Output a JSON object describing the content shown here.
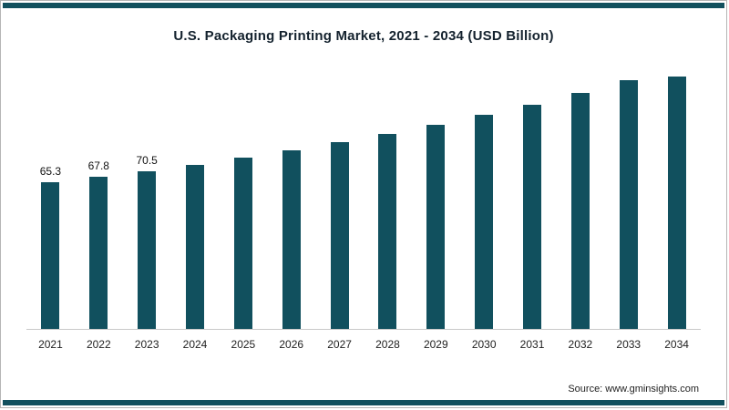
{
  "chart_data": {
    "type": "bar",
    "title": "U.S. Packaging Printing Market, 2021 - 2034 (USD Billion)",
    "categories": [
      "2021",
      "2022",
      "2023",
      "2024",
      "2025",
      "2026",
      "2027",
      "2028",
      "2029",
      "2030",
      "2031",
      "2032",
      "2033",
      "2034"
    ],
    "values": [
      65.3,
      67.8,
      70.5,
      73.4,
      76.5,
      79.8,
      83.2,
      87.0,
      91.2,
      95.5,
      100.2,
      105.5,
      111.2,
      117.0
    ],
    "data_labels": [
      "65.3",
      "67.8",
      "70.5",
      "",
      "",
      "",
      "",
      "",
      "",
      "",
      "",
      "",
      "",
      ""
    ],
    "xlabel": "",
    "ylabel": "",
    "ylim": [
      0,
      120
    ],
    "grid": false,
    "legend": "none",
    "bar_color": "#11505e",
    "source": "Source: www.gminsights.com"
  }
}
